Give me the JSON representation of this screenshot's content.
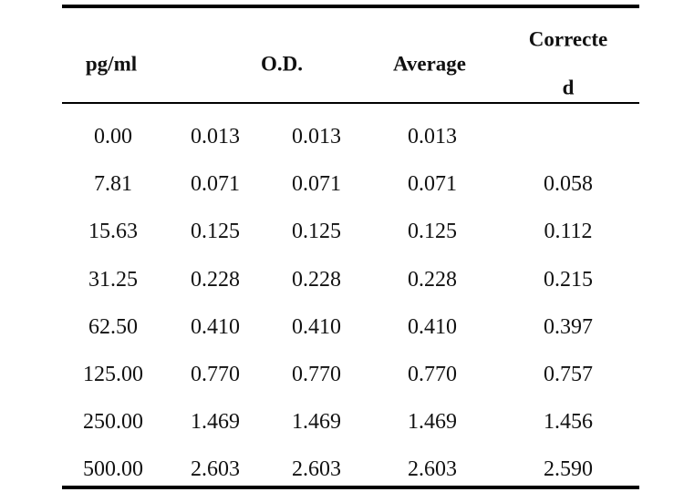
{
  "table": {
    "headers": {
      "concentration": "pg/ml",
      "od": "O.D.",
      "average": "Average",
      "corrected_line1": "Correcte",
      "corrected_line2": "d"
    },
    "rows": [
      {
        "conc": "0.00",
        "od1": "0.013",
        "od2": "0.013",
        "avg": "0.013",
        "corrected": ""
      },
      {
        "conc": "7.81",
        "od1": "0.071",
        "od2": "0.071",
        "avg": "0.071",
        "corrected": "0.058"
      },
      {
        "conc": "15.63",
        "od1": "0.125",
        "od2": "0.125",
        "avg": "0.125",
        "corrected": "0.112"
      },
      {
        "conc": "31.25",
        "od1": "0.228",
        "od2": "0.228",
        "avg": "0.228",
        "corrected": "0.215"
      },
      {
        "conc": "62.50",
        "od1": "0.410",
        "od2": "0.410",
        "avg": "0.410",
        "corrected": "0.397"
      },
      {
        "conc": "125.00",
        "od1": "0.770",
        "od2": "0.770",
        "avg": "0.770",
        "corrected": "0.757"
      },
      {
        "conc": "250.00",
        "od1": "1.469",
        "od2": "1.469",
        "avg": "1.469",
        "corrected": "1.456"
      },
      {
        "conc": "500.00",
        "od1": "2.603",
        "od2": "2.603",
        "avg": "2.603",
        "corrected": "2.590"
      }
    ]
  }
}
